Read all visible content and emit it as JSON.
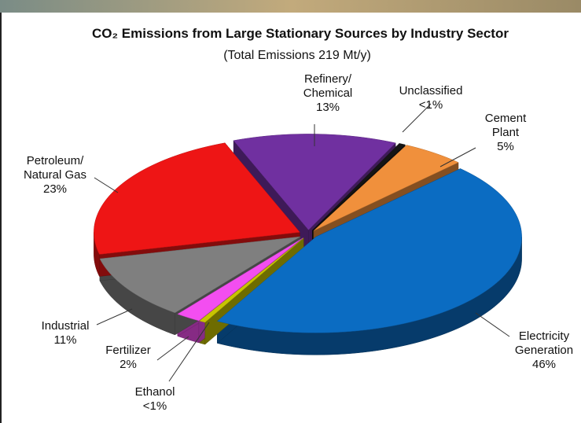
{
  "chart_data": {
    "type": "pie",
    "title": "CO₂ Emissions from Large Stationary Sources by Industry Sector",
    "subtitle": "(Total Emissions 219 Mt/y)",
    "categories": [
      "Unclassified",
      "Cement\nPlant",
      "Electricity\nGeneration",
      "Ethanol",
      "Fertilizer",
      "Industrial",
      "Petroleum/\nNatural Gas",
      "Refinery/\nChemical"
    ],
    "values": [
      0.5,
      5,
      46,
      0.5,
      2,
      11,
      23,
      13
    ],
    "value_labels": [
      "<1%",
      "5%",
      "46%",
      "<1%",
      "2%",
      "11%",
      "23%",
      "13%"
    ],
    "colors": [
      "#151515",
      "#f0903c",
      "#0b6cc2",
      "#c8c400",
      "#f34ef0",
      "#7f7f7f",
      "#ee1515",
      "#7030a0"
    ]
  }
}
